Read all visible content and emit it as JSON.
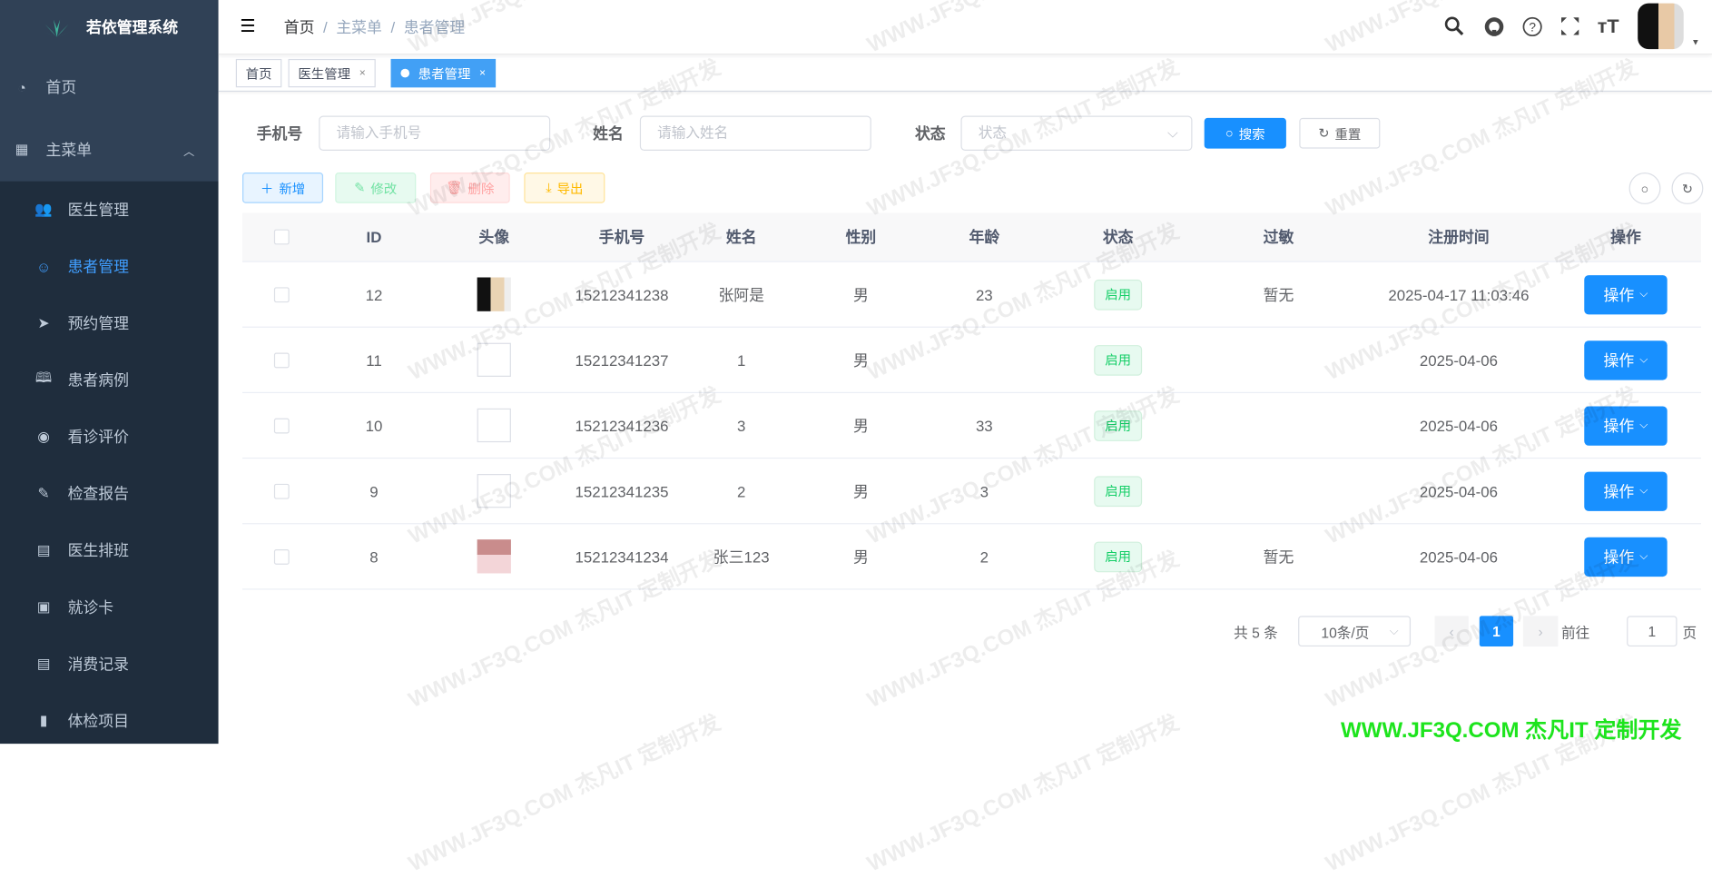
{
  "app": {
    "title": "若依管理系统"
  },
  "sidebar": {
    "items": [
      {
        "label": "首页",
        "icon": "dashboard-icon"
      },
      {
        "label": "主菜单",
        "icon": "table-icon"
      },
      {
        "label": "医生管理",
        "icon": "users-icon"
      },
      {
        "label": "患者管理",
        "icon": "patient-icon",
        "active": true
      },
      {
        "label": "预约管理",
        "icon": "send-icon"
      },
      {
        "label": "患者病例",
        "icon": "book-icon"
      },
      {
        "label": "看诊评价",
        "icon": "globe-icon"
      },
      {
        "label": "检查报告",
        "icon": "edit-icon"
      },
      {
        "label": "医生排班",
        "icon": "calendar-icon"
      },
      {
        "label": "就诊卡",
        "icon": "card-icon"
      },
      {
        "label": "消费记录",
        "icon": "document-icon"
      },
      {
        "label": "体检项目",
        "icon": "clipboard-icon"
      }
    ]
  },
  "breadcrumb": [
    "首页",
    "主菜单",
    "患者管理"
  ],
  "tags": [
    {
      "label": "首页"
    },
    {
      "label": "医生管理"
    },
    {
      "label": "患者管理",
      "active": true
    }
  ],
  "search": {
    "phone_label": "手机号",
    "phone_placeholder": "请输入手机号",
    "name_label": "姓名",
    "name_placeholder": "请输入姓名",
    "status_label": "状态",
    "status_placeholder": "状态",
    "search_btn": "搜索",
    "reset_btn": "重置"
  },
  "toolbar": {
    "add": "新增",
    "edit": "修改",
    "delete": "删除",
    "export": "导出"
  },
  "table": {
    "columns": [
      "ID",
      "头像",
      "手机号",
      "姓名",
      "性别",
      "年龄",
      "状态",
      "过敏",
      "注册时间",
      "操作"
    ],
    "rows": [
      {
        "id": "12",
        "avatar": "male",
        "phone": "15212341238",
        "name": "张阿是",
        "gender": "男",
        "age": "23",
        "status": "启用",
        "allergy": "暂无",
        "time": "2025-04-17 11:03:46",
        "op": "操作"
      },
      {
        "id": "11",
        "avatar": "",
        "phone": "15212341237",
        "name": "1",
        "gender": "男",
        "age": "",
        "status": "启用",
        "allergy": "",
        "time": "2025-04-06",
        "op": "操作"
      },
      {
        "id": "10",
        "avatar": "",
        "phone": "15212341236",
        "name": "3",
        "gender": "男",
        "age": "33",
        "status": "启用",
        "allergy": "",
        "time": "2025-04-06",
        "op": "操作"
      },
      {
        "id": "9",
        "avatar": "",
        "phone": "15212341235",
        "name": "2",
        "gender": "男",
        "age": "3",
        "status": "启用",
        "allergy": "",
        "time": "2025-04-06",
        "op": "操作"
      },
      {
        "id": "8",
        "avatar": "female",
        "phone": "15212341234",
        "name": "张三123",
        "gender": "男",
        "age": "2",
        "status": "启用",
        "allergy": "暂无",
        "time": "2025-04-06",
        "op": "操作"
      }
    ]
  },
  "pagination": {
    "total": "共 5 条",
    "page_size": "10条/页",
    "current": "1",
    "goto_label": "前往",
    "goto_value": "1",
    "page_suffix": "页"
  },
  "watermark": "WWW.JF3Q.COM 杰凡IT  定制开发",
  "colors": {
    "sidebar": "#304156",
    "primary": "#1890ff",
    "success": "#13ce66",
    "watermark_green": "#1de41d"
  }
}
